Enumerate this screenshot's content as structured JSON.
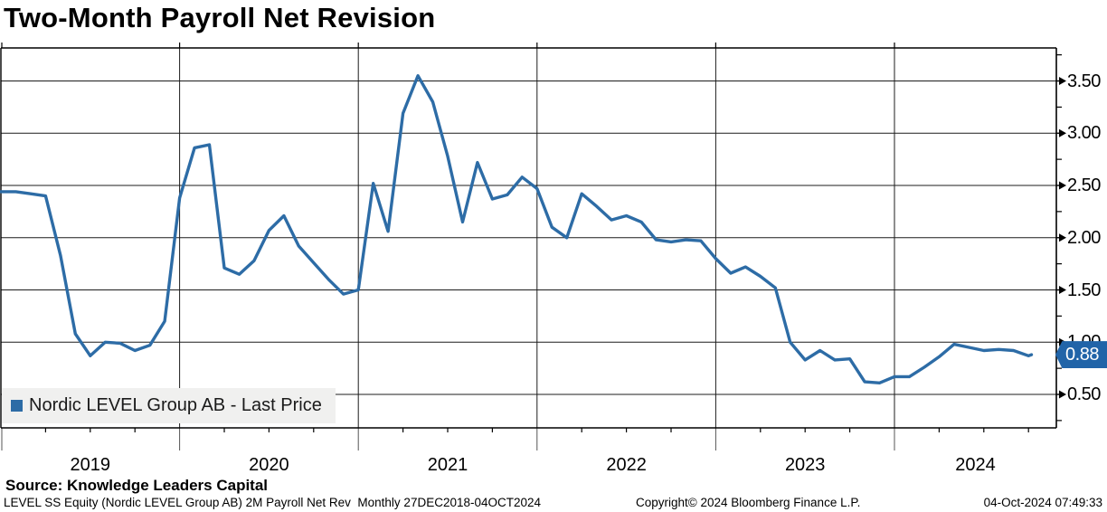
{
  "title": "Two-Month Payroll Net Revision",
  "legend": {
    "label": "Nordic LEVEL Group AB - Last Price",
    "marker_color": "#2d6ca6"
  },
  "last_price_badge": {
    "value": "0.88",
    "color": "#2164a8",
    "text_color": "#ffffff"
  },
  "y_axis": {
    "tick_labels": [
      "3.50",
      "3.00",
      "2.50",
      "2.00",
      "1.50",
      "1.00",
      "0.50"
    ],
    "tick_values": [
      3.5,
      3.0,
      2.5,
      2.0,
      1.5,
      1.0,
      0.5
    ]
  },
  "x_axis": {
    "year_labels": [
      "2019",
      "2020",
      "2021",
      "2022",
      "2023",
      "2024"
    ]
  },
  "source_line": "Source: Knowledge Leaders Capital",
  "footer": {
    "left": "LEVEL SS Equity (Nordic LEVEL Group AB) 2M Payroll Net Rev  Monthly 27DEC2018-04OCT2024",
    "center": "Copyright© 2024 Bloomberg Finance L.P.",
    "right": "04-Oct-2024 07:49:33"
  },
  "chart_data": {
    "type": "line",
    "title": "Two-Month Payroll Net Revision",
    "xlabel": "",
    "ylabel": "",
    "ylim": [
      0.18,
      3.82
    ],
    "y_tick_step": 0.5,
    "grid": true,
    "legend_position": "bottom-left",
    "last_value": 0.88,
    "x": [
      "2018-12",
      "2019-01",
      "2019-02",
      "2019-03",
      "2019-04",
      "2019-05",
      "2019-06",
      "2019-07",
      "2019-08",
      "2019-09",
      "2019-10",
      "2019-11",
      "2019-12",
      "2020-01",
      "2020-02",
      "2020-03",
      "2020-04",
      "2020-05",
      "2020-06",
      "2020-07",
      "2020-08",
      "2020-09",
      "2020-10",
      "2020-11",
      "2020-12",
      "2021-01",
      "2021-02",
      "2021-03",
      "2021-04",
      "2021-05",
      "2021-06",
      "2021-07",
      "2021-08",
      "2021-09",
      "2021-10",
      "2021-11",
      "2021-12",
      "2022-01",
      "2022-02",
      "2022-03",
      "2022-04",
      "2022-05",
      "2022-06",
      "2022-07",
      "2022-08",
      "2022-09",
      "2022-10",
      "2022-11",
      "2022-12",
      "2023-01",
      "2023-02",
      "2023-03",
      "2023-04",
      "2023-05",
      "2023-06",
      "2023-07",
      "2023-08",
      "2023-09",
      "2023-10",
      "2023-11",
      "2023-12",
      "2024-01",
      "2024-02",
      "2024-03",
      "2024-04",
      "2024-05",
      "2024-06",
      "2024-07",
      "2024-08",
      "2024-09",
      "2024-10"
    ],
    "series": [
      {
        "name": "Nordic LEVEL Group AB - Last Price",
        "color": "#2d6ca6",
        "values": [
          2.44,
          2.44,
          2.42,
          2.4,
          1.83,
          1.08,
          0.87,
          1.0,
          0.99,
          0.92,
          0.97,
          1.2,
          2.38,
          2.86,
          2.89,
          1.71,
          1.65,
          1.78,
          2.07,
          2.21,
          1.92,
          1.76,
          1.6,
          1.46,
          1.5,
          2.52,
          2.06,
          3.19,
          3.55,
          3.3,
          2.78,
          2.15,
          2.72,
          2.37,
          2.41,
          2.58,
          2.47,
          2.1,
          2.0,
          2.42,
          2.3,
          2.17,
          2.21,
          2.15,
          1.98,
          1.96,
          1.98,
          1.97,
          1.8,
          1.66,
          1.72,
          1.63,
          1.52,
          1.0,
          0.83,
          0.92,
          0.83,
          0.84,
          0.62,
          0.61,
          0.67,
          0.67,
          0.76,
          0.86,
          0.98,
          0.95,
          0.92,
          0.93,
          0.92,
          0.87,
          0.88
        ]
      }
    ]
  }
}
